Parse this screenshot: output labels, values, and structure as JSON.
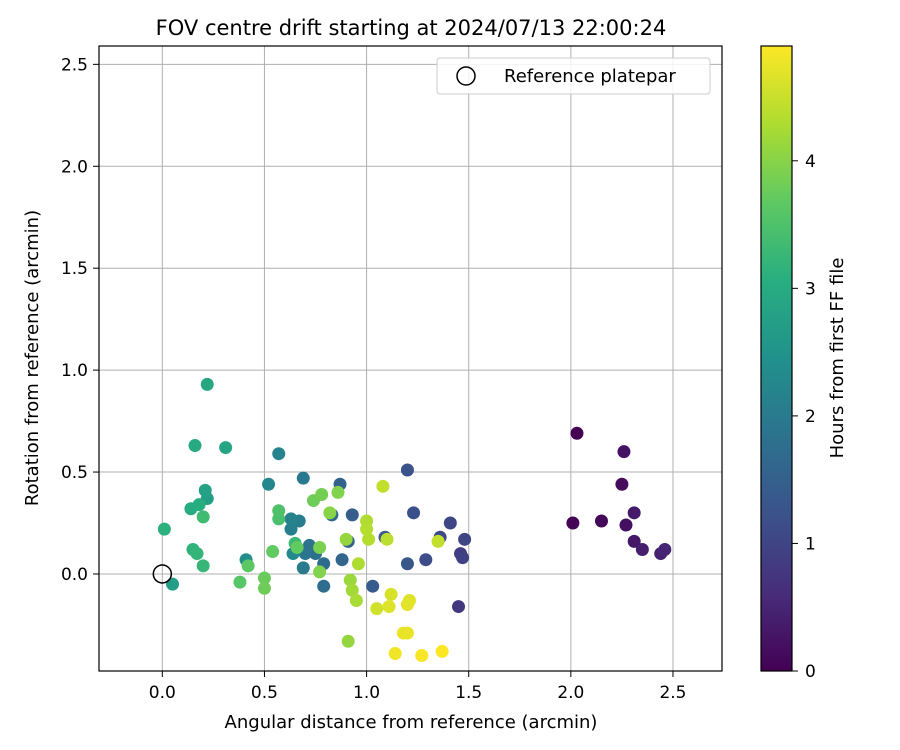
{
  "chart_data": {
    "type": "scatter",
    "title": "FOV centre drift starting at 2024/07/13 22:00:24",
    "xlabel": "Angular distance from reference (arcmin)",
    "ylabel": "Rotation from reference (arcmin)",
    "xlim": [
      -0.31,
      2.74
    ],
    "ylim": [
      -0.476,
      2.59
    ],
    "xticks": [
      0.0,
      0.5,
      1.0,
      1.5,
      2.0,
      2.5
    ],
    "xtick_labels": [
      "0.0",
      "0.5",
      "1.0",
      "1.5",
      "2.0",
      "2.5"
    ],
    "yticks": [
      0.0,
      0.5,
      1.0,
      1.5,
      2.0,
      2.5
    ],
    "ytick_labels": [
      "0.0",
      "0.5",
      "1.0",
      "1.5",
      "2.0",
      "2.5"
    ],
    "grid": true,
    "legend": {
      "position": "top-right",
      "entries": [
        "Reference platepar"
      ]
    },
    "reference": {
      "name": "Reference platepar",
      "x": 0.0,
      "y": 0.0
    },
    "colorbar": {
      "label": "Hours from first FF file",
      "colormap": "viridis",
      "range": [
        0,
        4.9
      ],
      "ticks": [
        0,
        1,
        2,
        3,
        4
      ],
      "tick_labels": [
        "0",
        "1",
        "2",
        "3",
        "4"
      ]
    },
    "points": [
      {
        "x": 2.03,
        "y": 0.69,
        "c": 0.0
      },
      {
        "x": 2.01,
        "y": 0.25,
        "c": 0.05
      },
      {
        "x": 2.15,
        "y": 0.26,
        "c": 0.1
      },
      {
        "x": 2.25,
        "y": 0.44,
        "c": 0.15
      },
      {
        "x": 2.27,
        "y": 0.24,
        "c": 0.2
      },
      {
        "x": 2.26,
        "y": 0.6,
        "c": 0.25
      },
      {
        "x": 2.31,
        "y": 0.16,
        "c": 0.3
      },
      {
        "x": 2.31,
        "y": 0.3,
        "c": 0.35
      },
      {
        "x": 2.35,
        "y": 0.12,
        "c": 0.4
      },
      {
        "x": 2.44,
        "y": 0.1,
        "c": 0.45
      },
      {
        "x": 2.46,
        "y": 0.12,
        "c": 0.5
      },
      {
        "x": 1.45,
        "y": -0.16,
        "c": 0.8
      },
      {
        "x": 1.46,
        "y": 0.1,
        "c": 0.9
      },
      {
        "x": 1.47,
        "y": 0.08,
        "c": 0.95
      },
      {
        "x": 1.48,
        "y": 0.17,
        "c": 1.0
      },
      {
        "x": 1.41,
        "y": 0.25,
        "c": 1.05
      },
      {
        "x": 1.36,
        "y": 0.18,
        "c": 1.1
      },
      {
        "x": 1.29,
        "y": 0.07,
        "c": 1.15
      },
      {
        "x": 1.23,
        "y": 0.3,
        "c": 1.2
      },
      {
        "x": 1.2,
        "y": 0.51,
        "c": 1.25
      },
      {
        "x": 1.2,
        "y": 0.05,
        "c": 1.3
      },
      {
        "x": 1.09,
        "y": 0.18,
        "c": 1.35
      },
      {
        "x": 1.03,
        "y": -0.06,
        "c": 1.4
      },
      {
        "x": 0.93,
        "y": 0.29,
        "c": 1.45
      },
      {
        "x": 0.91,
        "y": 0.16,
        "c": 1.5
      },
      {
        "x": 0.87,
        "y": 0.44,
        "c": 1.55
      },
      {
        "x": 0.88,
        "y": 0.07,
        "c": 1.6
      },
      {
        "x": 0.83,
        "y": 0.29,
        "c": 1.65
      },
      {
        "x": 0.79,
        "y": 0.05,
        "c": 1.7
      },
      {
        "x": 0.79,
        "y": -0.06,
        "c": 1.75
      },
      {
        "x": 0.75,
        "y": 0.1,
        "c": 1.8
      },
      {
        "x": 0.72,
        "y": 0.14,
        "c": 1.85
      },
      {
        "x": 0.7,
        "y": 0.1,
        "c": 1.9
      },
      {
        "x": 0.69,
        "y": 0.47,
        "c": 1.95
      },
      {
        "x": 0.69,
        "y": 0.03,
        "c": 2.0
      },
      {
        "x": 0.67,
        "y": 0.26,
        "c": 2.05
      },
      {
        "x": 0.63,
        "y": 0.22,
        "c": 2.1
      },
      {
        "x": 0.63,
        "y": 0.27,
        "c": 2.15
      },
      {
        "x": 0.57,
        "y": 0.59,
        "c": 2.2
      },
      {
        "x": 0.52,
        "y": 0.44,
        "c": 2.25
      },
      {
        "x": 0.64,
        "y": 0.1,
        "c": 2.3
      },
      {
        "x": 0.41,
        "y": 0.07,
        "c": 2.4
      },
      {
        "x": 0.05,
        "y": -0.05,
        "c": 2.7
      },
      {
        "x": 0.22,
        "y": 0.37,
        "c": 2.75
      },
      {
        "x": 0.21,
        "y": 0.41,
        "c": 2.8
      },
      {
        "x": 0.31,
        "y": 0.62,
        "c": 2.85
      },
      {
        "x": 0.22,
        "y": 0.93,
        "c": 2.9
      },
      {
        "x": 0.16,
        "y": 0.63,
        "c": 2.95
      },
      {
        "x": 0.14,
        "y": 0.32,
        "c": 3.0
      },
      {
        "x": 0.18,
        "y": 0.34,
        "c": 3.05
      },
      {
        "x": 0.01,
        "y": 0.22,
        "c": 3.1
      },
      {
        "x": 0.15,
        "y": 0.12,
        "c": 3.15
      },
      {
        "x": 0.17,
        "y": 0.1,
        "c": 3.2
      },
      {
        "x": 0.2,
        "y": 0.04,
        "c": 3.25
      },
      {
        "x": 0.65,
        "y": 0.15,
        "c": 3.3
      },
      {
        "x": 0.2,
        "y": 0.28,
        "c": 3.35
      },
      {
        "x": 0.57,
        "y": 0.27,
        "c": 3.45
      },
      {
        "x": 0.57,
        "y": 0.31,
        "c": 3.5
      },
      {
        "x": 0.38,
        "y": -0.04,
        "c": 3.6
      },
      {
        "x": 0.42,
        "y": 0.04,
        "c": 3.65
      },
      {
        "x": 0.54,
        "y": 0.11,
        "c": 3.7
      },
      {
        "x": 0.66,
        "y": 0.13,
        "c": 3.7
      },
      {
        "x": 0.5,
        "y": -0.02,
        "c": 3.75
      },
      {
        "x": 0.5,
        "y": -0.07,
        "c": 3.8
      },
      {
        "x": 0.74,
        "y": 0.36,
        "c": 3.8
      },
      {
        "x": 0.78,
        "y": 0.39,
        "c": 3.85
      },
      {
        "x": 0.77,
        "y": 0.13,
        "c": 3.9
      },
      {
        "x": 0.77,
        "y": 0.01,
        "c": 3.95
      },
      {
        "x": 0.86,
        "y": 0.4,
        "c": 3.95
      },
      {
        "x": 0.82,
        "y": 0.3,
        "c": 4.0
      },
      {
        "x": 0.9,
        "y": 0.17,
        "c": 4.1
      },
      {
        "x": 0.91,
        "y": -0.33,
        "c": 4.1
      },
      {
        "x": 0.92,
        "y": -0.03,
        "c": 4.15
      },
      {
        "x": 0.93,
        "y": -0.08,
        "c": 4.2
      },
      {
        "x": 0.95,
        "y": -0.13,
        "c": 4.25
      },
      {
        "x": 0.96,
        "y": 0.05,
        "c": 4.3
      },
      {
        "x": 1.0,
        "y": 0.26,
        "c": 4.3
      },
      {
        "x": 1.0,
        "y": 0.22,
        "c": 4.35
      },
      {
        "x": 1.01,
        "y": 0.17,
        "c": 4.35
      },
      {
        "x": 1.1,
        "y": 0.17,
        "c": 4.4
      },
      {
        "x": 1.08,
        "y": 0.43,
        "c": 4.45
      },
      {
        "x": 1.35,
        "y": 0.16,
        "c": 4.45
      },
      {
        "x": 1.05,
        "y": -0.17,
        "c": 4.55
      },
      {
        "x": 1.12,
        "y": -0.1,
        "c": 4.6
      },
      {
        "x": 1.11,
        "y": -0.16,
        "c": 4.65
      },
      {
        "x": 1.21,
        "y": -0.13,
        "c": 4.65
      },
      {
        "x": 1.2,
        "y": -0.15,
        "c": 4.7
      },
      {
        "x": 1.18,
        "y": -0.29,
        "c": 4.75
      },
      {
        "x": 1.2,
        "y": -0.29,
        "c": 4.75
      },
      {
        "x": 1.14,
        "y": -0.39,
        "c": 4.8
      },
      {
        "x": 1.27,
        "y": -0.4,
        "c": 4.85
      },
      {
        "x": 1.37,
        "y": -0.38,
        "c": 4.9
      }
    ]
  }
}
